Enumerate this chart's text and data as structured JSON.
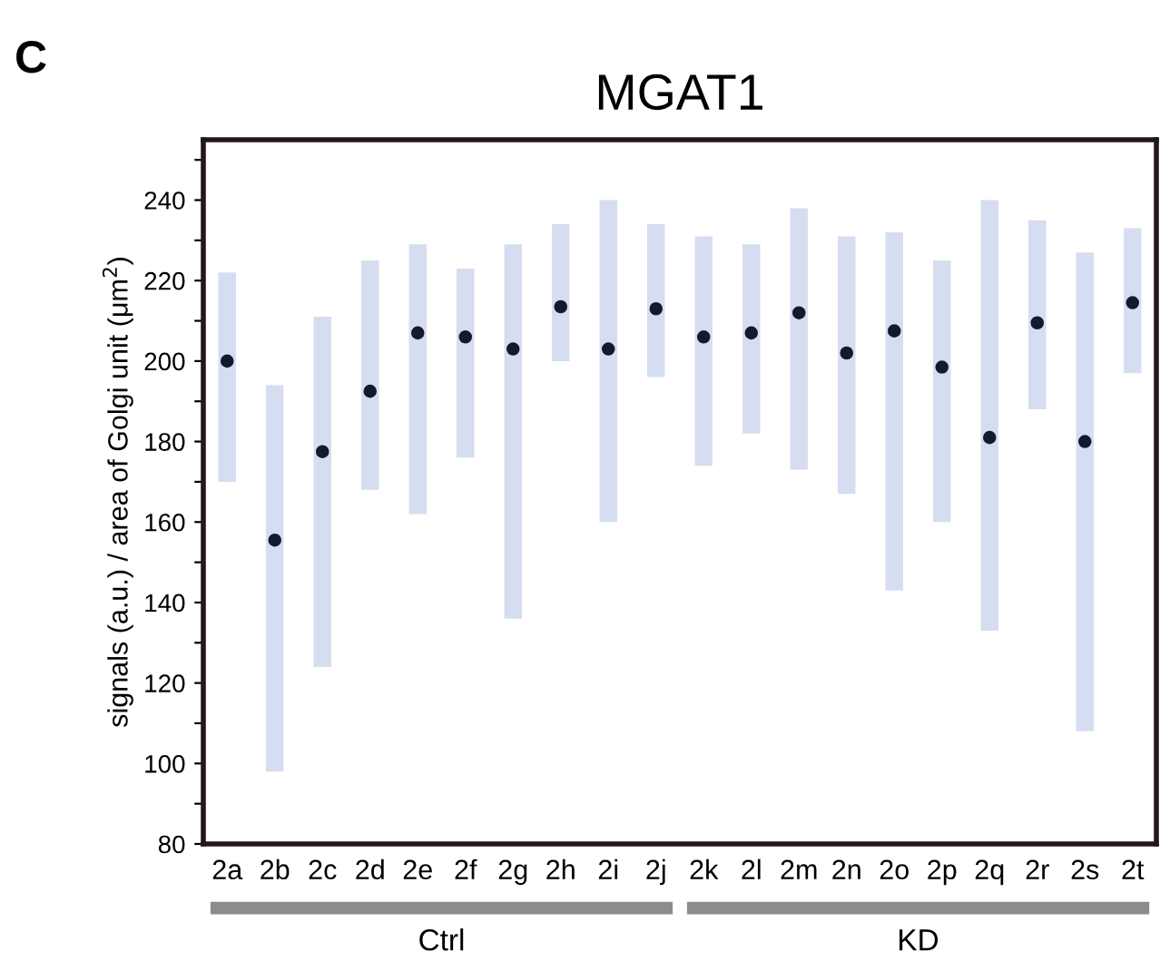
{
  "chart_data": {
    "type": "scatter",
    "title": "MGAT1",
    "ylabel": "signals (a.u.) / area of Golgi unit (μm$^{2}$)",
    "categories": [
      "2a",
      "2b",
      "2c",
      "2d",
      "2e",
      "2f",
      "2g",
      "2h",
      "2i",
      "2j",
      "2k",
      "2l",
      "2m",
      "2n",
      "2o",
      "2p",
      "2q",
      "2r",
      "2s",
      "2t"
    ],
    "series": [
      {
        "color": "#141a2e",
        "values": [
          200,
          155.5,
          177.5,
          192.5,
          207,
          206,
          203,
          213.5,
          203,
          213,
          206,
          207,
          212,
          202,
          207.5,
          198.5,
          181,
          209.5,
          180,
          214.5
        ],
        "errors": [
          [
            170,
            222
          ],
          [
            98,
            194
          ],
          [
            124,
            211
          ],
          [
            168,
            225
          ],
          [
            162,
            229
          ],
          [
            176,
            223
          ],
          [
            136,
            229
          ],
          [
            200,
            234
          ],
          [
            160,
            240
          ],
          [
            196,
            234
          ],
          [
            174,
            231
          ],
          [
            182,
            229
          ],
          [
            173,
            238
          ],
          [
            167,
            231
          ],
          [
            143,
            232
          ],
          [
            160,
            225
          ],
          [
            133,
            240
          ],
          [
            188,
            235
          ],
          [
            108,
            227
          ],
          [
            197,
            233
          ]
        ]
      }
    ],
    "ylim": [
      80,
      255
    ],
    "yticks": [
      80,
      {
        "value": 90,
        "label": null
      },
      100,
      {
        "value": 110,
        "label": null
      },
      120,
      {
        "value": 130,
        "label": null
      },
      140,
      {
        "value": 150,
        "label": null
      },
      160,
      {
        "value": 170,
        "label": null
      },
      180,
      {
        "value": 190,
        "label": null
      },
      200,
      {
        "value": 210,
        "label": null
      },
      220,
      {
        "value": 230,
        "label": null
      },
      240,
      {
        "value": 250,
        "label": null
      }
    ],
    "marker": "circle",
    "grid": false,
    "legend": false,
    "annotations": [
      "C",
      "Ctrl",
      "KD"
    ]
  }
}
